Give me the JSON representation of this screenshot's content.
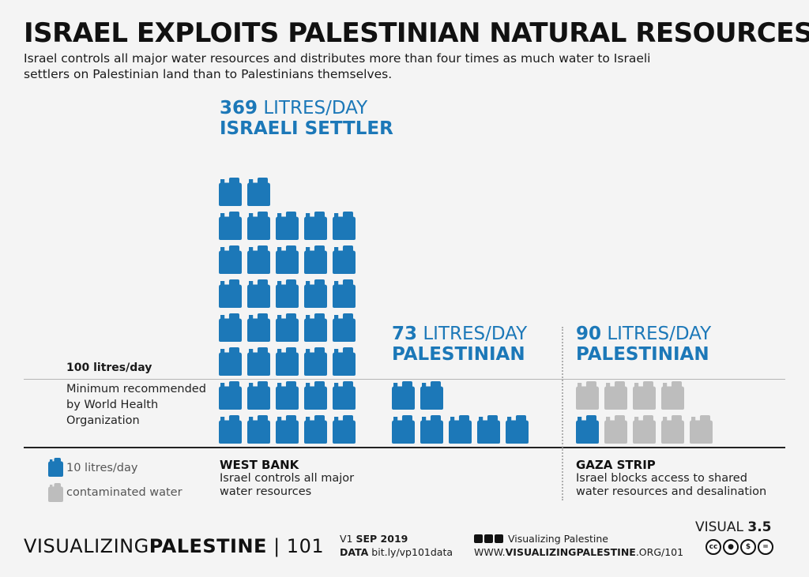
{
  "title": "ISRAEL EXPLOITS PALESTINIAN NATURAL RESOURCES",
  "subtitle": "Israel controls all major water resources and distributes more than four times as much water to Israeli settlers on Palestinian land than to Palestinians themselves.",
  "colors": {
    "water": "#1c78b8",
    "contaminated": "#bdbdbd",
    "text": "#111111",
    "background": "#f4f4f4"
  },
  "reference": {
    "value_label": "100 litres/day",
    "description": "Minimum recommended by World Health Organization"
  },
  "legend": {
    "water_label": "10 litres/day",
    "contaminated_label": "contaminated water"
  },
  "groups": [
    {
      "value": "369",
      "unit": "LITRES/DAY",
      "label": "ISRAELI SETTLER"
    },
    {
      "value": "73",
      "unit": "LITRES/DAY",
      "label": "PALESTINIAN"
    },
    {
      "value": "90",
      "unit": "LITRES/DAY",
      "label": "PALESTINIAN"
    }
  ],
  "regions": {
    "west_bank": {
      "name": "WEST BANK",
      "note1": "Israel controls all major",
      "note2": "water resources"
    },
    "gaza": {
      "name": "GAZA STRIP",
      "note1": "Israel blocks access to shared",
      "note2": "water resources and desalination"
    }
  },
  "footer": {
    "brand_light": "VISUALIZING",
    "brand_bold": "PALESTINE",
    "brand_suffix": " | 101",
    "version": "V1",
    "date": "SEP 2019",
    "data_label": "DATA",
    "data_link": "bit.ly/vp101data",
    "social_handle": "Visualizing Palestine",
    "url_prefix": "WWW.",
    "url_bold": "VISUALIZINGPALESTINE",
    "url_suffix": ".ORG/101",
    "visual_label": "VISUAL",
    "visual_number": "3.5",
    "license_icons": [
      "cc",
      "by",
      "nc",
      "nd"
    ]
  },
  "chart_data": {
    "type": "bar",
    "title": "ISRAEL EXPLOITS PALESTINIAN NATURAL RESOURCES",
    "unit_per_icon": 10,
    "categories": [
      "ISRAELI SETTLER",
      "PALESTINIAN",
      "PALESTINIAN"
    ],
    "regions": [
      "WEST BANK",
      "WEST BANK",
      "GAZA STRIP"
    ],
    "values": [
      369,
      73,
      90
    ],
    "icon_counts": {
      "clean": [
        37,
        7,
        1
      ],
      "contaminated": [
        0,
        0,
        8
      ]
    },
    "reference_line": {
      "value": 100,
      "label": "100 litres/day"
    },
    "series": [
      {
        "name": "10 litres/day",
        "values": [
          369,
          73,
          10
        ]
      },
      {
        "name": "contaminated water",
        "values": [
          0,
          0,
          80
        ]
      }
    ]
  }
}
